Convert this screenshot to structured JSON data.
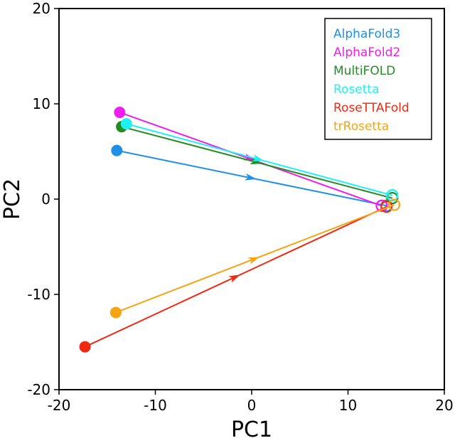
{
  "chart_data": {
    "type": "line",
    "title": "",
    "xlabel": "PC1",
    "ylabel": "PC2",
    "xlim": [
      -20,
      20
    ],
    "ylim": [
      -20,
      20
    ],
    "xticks": [
      -20,
      -10,
      0,
      10,
      20
    ],
    "yticks": [
      -20,
      -10,
      0,
      10,
      20
    ],
    "grid": false,
    "legend_position": "top-right",
    "series": [
      {
        "name": "AlphaFold3",
        "color": "#1f8fe8",
        "start": [
          -14.0,
          5.1
        ],
        "end": [
          14.0,
          -0.7
        ]
      },
      {
        "name": "AlphaFold2",
        "color": "#ee1fee",
        "start": [
          -13.7,
          9.1
        ],
        "end": [
          13.5,
          -0.7
        ]
      },
      {
        "name": "MultiFOLD",
        "color": "#238c23",
        "start": [
          -13.5,
          7.6
        ],
        "end": [
          14.6,
          0.1
        ]
      },
      {
        "name": "Rosetta",
        "color": "#1ff0f0",
        "start": [
          -13.0,
          7.9
        ],
        "end": [
          14.6,
          0.4
        ]
      },
      {
        "name": "RoseTTAFold",
        "color": "#ee2a12",
        "start": [
          -17.3,
          -15.5
        ],
        "end": [
          14.0,
          -0.8
        ]
      },
      {
        "name": "trRosetta",
        "color": "#f6a414",
        "start": [
          -14.1,
          -11.9
        ],
        "end": [
          14.8,
          -0.6
        ]
      }
    ]
  }
}
